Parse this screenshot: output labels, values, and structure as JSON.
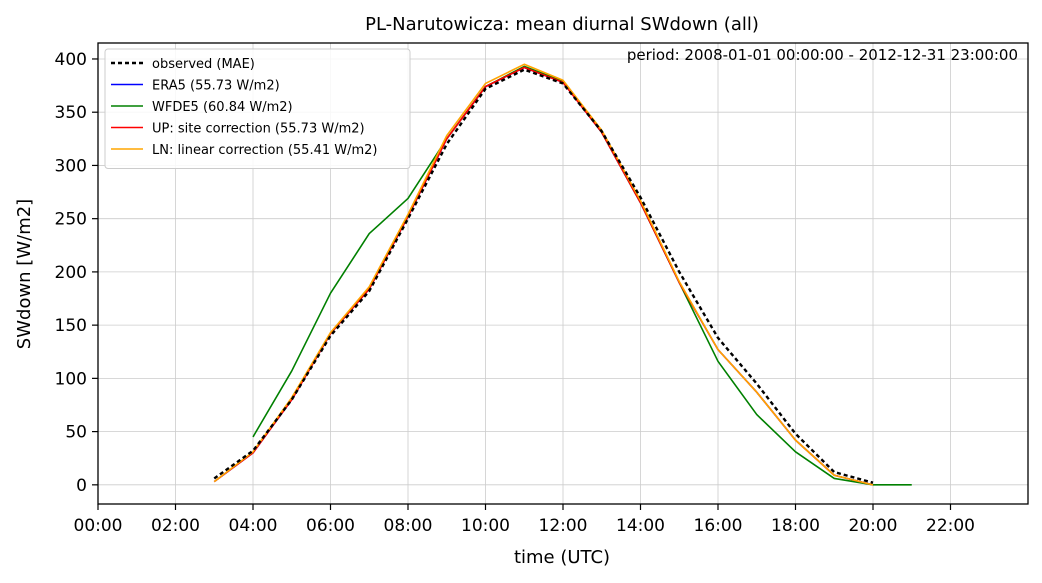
{
  "chart_data": {
    "type": "line",
    "title": "PL-Narutowicza: mean diurnal SWdown (all)",
    "xlabel": "time (UTC)",
    "ylabel": "SWdown [W/m2]",
    "annotation": "period: 2008-01-01 00:00:00 - 2012-12-31 23:00:00",
    "xlim": [
      0,
      24
    ],
    "ylim": [
      -18,
      415
    ],
    "x_ticks": [
      {
        "value": 0,
        "label": "00:00"
      },
      {
        "value": 2,
        "label": "02:00"
      },
      {
        "value": 4,
        "label": "04:00"
      },
      {
        "value": 6,
        "label": "06:00"
      },
      {
        "value": 8,
        "label": "08:00"
      },
      {
        "value": 10,
        "label": "10:00"
      },
      {
        "value": 12,
        "label": "12:00"
      },
      {
        "value": 14,
        "label": "14:00"
      },
      {
        "value": 16,
        "label": "16:00"
      },
      {
        "value": 18,
        "label": "18:00"
      },
      {
        "value": 20,
        "label": "20:00"
      },
      {
        "value": 22,
        "label": "22:00"
      }
    ],
    "y_ticks": [
      0,
      50,
      100,
      150,
      200,
      250,
      300,
      350,
      400
    ],
    "grid": true,
    "legend_position": "top-left",
    "series": [
      {
        "name": "observed (MAE)",
        "color": "#000000",
        "dash": "dotted",
        "x": [
          3,
          4,
          5,
          6,
          7,
          8,
          9,
          10,
          11,
          12,
          13,
          14,
          15,
          16,
          17,
          18,
          19,
          20
        ],
        "y": [
          6,
          32,
          80,
          140,
          182,
          250,
          320,
          372,
          390,
          377,
          332,
          270,
          200,
          138,
          95,
          48,
          12,
          2
        ]
      },
      {
        "name": "ERA5 (55.73 W/m2)",
        "color": "#0000ff",
        "dash": "solid",
        "x": [
          3,
          4,
          5,
          6,
          7,
          8,
          9,
          10,
          11,
          12,
          13,
          14,
          15,
          16,
          17,
          18,
          19,
          20
        ],
        "y": [
          3,
          30,
          80,
          142,
          184,
          252,
          325,
          374,
          392,
          378,
          331,
          265,
          190,
          127,
          87,
          42,
          9,
          0
        ]
      },
      {
        "name": "WFDE5 (60.84 W/m2)",
        "color": "#008000",
        "dash": "solid",
        "x": [
          4,
          5,
          6,
          7,
          8,
          9,
          10,
          11,
          12,
          13,
          14,
          15,
          16,
          17,
          18,
          19,
          20,
          21
        ],
        "y": [
          45,
          107,
          180,
          236,
          269,
          325,
          374,
          393,
          379,
          331,
          265,
          190,
          116,
          66,
          31,
          6,
          0,
          0
        ]
      },
      {
        "name": "UP: site correction (55.73 W/m2)",
        "color": "#ff0000",
        "dash": "solid",
        "x": [
          3,
          4,
          5,
          6,
          7,
          8,
          9,
          10,
          11,
          12,
          13,
          14,
          15,
          16,
          17,
          18,
          19,
          20
        ],
        "y": [
          3,
          30,
          80,
          142,
          184,
          252,
          325,
          374,
          392,
          378,
          331,
          265,
          190,
          127,
          87,
          42,
          9,
          0
        ]
      },
      {
        "name": "LN: linear correction (55.41 W/m2)",
        "color": "#ffa500",
        "dash": "solid",
        "x": [
          3,
          4,
          5,
          6,
          7,
          8,
          9,
          10,
          11,
          12,
          13,
          14,
          15,
          16,
          17,
          18,
          19,
          20
        ],
        "y": [
          3,
          31,
          82,
          143,
          186,
          254,
          328,
          377,
          395,
          380,
          333,
          267,
          191,
          127,
          87,
          42,
          9,
          0
        ]
      }
    ]
  }
}
